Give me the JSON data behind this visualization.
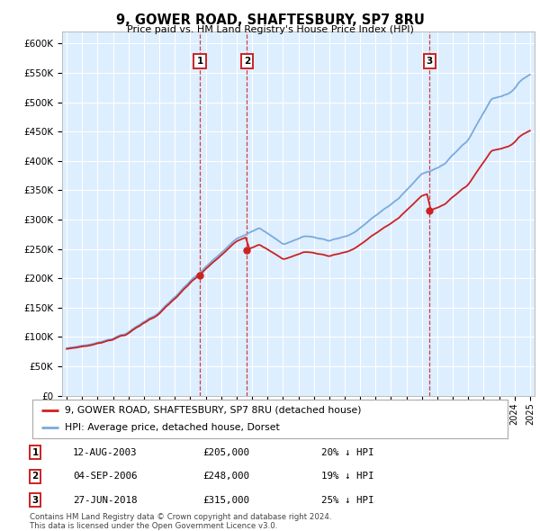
{
  "title": "9, GOWER ROAD, SHAFTESBURY, SP7 8RU",
  "subtitle": "Price paid vs. HM Land Registry's House Price Index (HPI)",
  "hpi_color": "#7aaadd",
  "price_color": "#cc2222",
  "bg_color": "#ffffff",
  "plot_bg_color": "#ddeeff",
  "grid_color": "#ffffff",
  "transactions": [
    {
      "num": 1,
      "date_str": "12-AUG-2003",
      "date_x": 2003.62,
      "price": 205000,
      "label": "20% ↓ HPI"
    },
    {
      "num": 2,
      "date_str": "04-SEP-2006",
      "date_x": 2006.67,
      "price": 248000,
      "label": "19% ↓ HPI"
    },
    {
      "num": 3,
      "date_str": "27-JUN-2018",
      "date_x": 2018.49,
      "price": 315000,
      "label": "25% ↓ HPI"
    }
  ],
  "legend_label_price": "9, GOWER ROAD, SHAFTESBURY, SP7 8RU (detached house)",
  "legend_label_hpi": "HPI: Average price, detached house, Dorset",
  "footnote1": "Contains HM Land Registry data © Crown copyright and database right 2024.",
  "footnote2": "This data is licensed under the Open Government Licence v3.0.",
  "xmin": 1994.7,
  "xmax": 2025.3,
  "ymin": 0,
  "ymax": 620000,
  "yticks": [
    0,
    50000,
    100000,
    150000,
    200000,
    250000,
    300000,
    350000,
    400000,
    450000,
    500000,
    550000,
    600000
  ],
  "ytick_labels": [
    "£0",
    "£50K",
    "£100K",
    "£150K",
    "£200K",
    "£250K",
    "£300K",
    "£350K",
    "£400K",
    "£450K",
    "£500K",
    "£550K",
    "£600K"
  ]
}
